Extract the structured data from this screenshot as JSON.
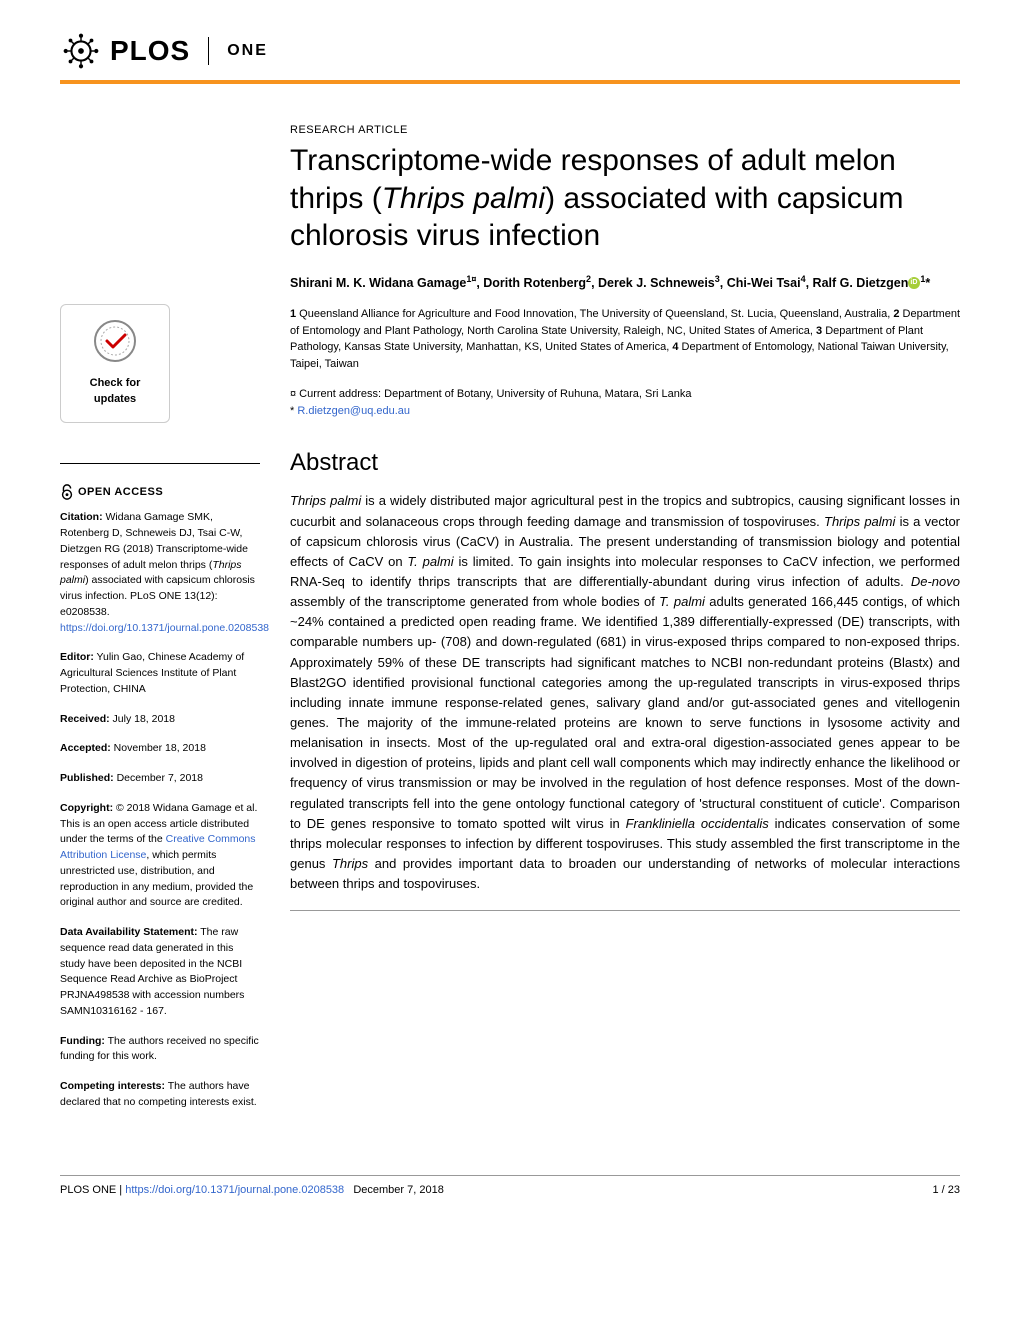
{
  "journal": {
    "logo_text": "PLOS",
    "section": "ONE"
  },
  "colors": {
    "accent_bar": "#f7931e",
    "link": "#3366cc",
    "orcid": "#a6ce39",
    "text": "#000000",
    "hr": "#999999"
  },
  "article": {
    "type": "RESEARCH ARTICLE",
    "title_html": "Transcriptome-wide responses of adult melon thrips (<em>Thrips palmi</em>) associated with capsicum chlorosis virus infection",
    "authors_html": "Shirani M. K. Widana Gamage<sup>1¤</sup>, Dorith Rotenberg<sup>2</sup>, Derek J. Schneweis<sup>3</sup>, Chi-Wei Tsai<sup>4</sup>, Ralf G. Dietzgen<span class='orcid-icon' data-name='orcid-icon' data-interactable='false'></span><sup>1</sup>*",
    "affiliations_html": "<strong>1</strong> Queensland Alliance for Agriculture and Food Innovation, The University of Queensland, St. Lucia, Queensland, Australia, <strong>2</strong> Department of Entomology and Plant Pathology, North Carolina State University, Raleigh, NC, United States of America, <strong>3</strong> Department of Plant Pathology, Kansas State University, Manhattan, KS, United States of America, <strong>4</strong> Department of Entomology, National Taiwan University, Taipei, Taiwan",
    "current_address": "¤ Current address: Department of Botany, University of Ruhuna, Matara, Sri Lanka",
    "corresponding_prefix": "* ",
    "corresponding_email": "R.dietzgen@uq.edu.au"
  },
  "abstract": {
    "heading": "Abstract",
    "body_html": "<em>Thrips palmi</em> is a widely distributed major agricultural pest in the tropics and subtropics, causing significant losses in cucurbit and solanaceous crops through feeding damage and transmission of tospoviruses. <em>Thrips palmi</em> is a vector of capsicum chlorosis virus (CaCV) in Australia. The present understanding of transmission biology and potential effects of CaCV on <em>T. palmi</em> is limited. To gain insights into molecular responses to CaCV infection, we performed RNA-Seq to identify thrips transcripts that are differentially-abundant during virus infection of adults. <em>De-novo</em> assembly of the transcriptome generated from whole bodies of <em>T. palmi</em> adults generated 166,445 contigs, of which ~24% contained a predicted open reading frame. We identified 1,389 differentially-expressed (DE) transcripts, with comparable numbers up- (708) and down-regulated (681) in virus-exposed thrips compared to non-exposed thrips. Approximately 59% of these DE transcripts had significant matches to NCBI non-redundant proteins (Blastx) and Blast2GO identified provisional functional categories among the up-regulated transcripts in virus-exposed thrips including innate immune response-related genes, salivary gland and/or gut-associated genes and vitellogenin genes. The majority of the immune-related proteins are known to serve functions in lysosome activity and melanisation in insects. Most of the up-regulated oral and extra-oral digestion-associated genes appear to be involved in digestion of proteins, lipids and plant cell wall components which may indirectly enhance the likelihood or frequency of virus transmission or may be involved in the regulation of host defence responses. Most of the down-regulated transcripts fell into the gene ontology functional category of 'structural constituent of cuticle'. Comparison to DE genes responsive to tomato spotted wilt virus in <em>Frankliniella occidentalis</em> indicates conservation of some thrips molecular responses to infection by different tospoviruses. This study assembled the first transcriptome in the genus <em>Thrips</em> and provides important data to broaden our understanding of networks of molecular interactions between thrips and tospoviruses."
  },
  "sidebar": {
    "check_updates_line1": "Check for",
    "check_updates_line2": "updates",
    "open_access": "OPEN ACCESS",
    "citation_label": "Citation:",
    "citation_text": " Widana Gamage SMK, Rotenberg D, Schneweis DJ, Tsai C-W, Dietzgen RG (2018) Transcriptome-wide responses of adult melon thrips (<em>Thrips palmi</em>) associated with capsicum chlorosis virus infection. PLoS ONE 13(12): e0208538. ",
    "citation_link": "https://doi.org/10.1371/journal.pone.0208538",
    "editor_label": "Editor:",
    "editor_text": " Yulin Gao, Chinese Academy of Agricultural Sciences Institute of Plant Protection, CHINA",
    "received_label": "Received:",
    "received_text": " July 18, 2018",
    "accepted_label": "Accepted:",
    "accepted_text": " November 18, 2018",
    "published_label": "Published:",
    "published_text": " December 7, 2018",
    "copyright_label": "Copyright:",
    "copyright_text_pre": " © 2018 Widana Gamage et al. This is an open access article distributed under the terms of the ",
    "copyright_link": "Creative Commons Attribution License",
    "copyright_text_post": ", which permits unrestricted use, distribution, and reproduction in any medium, provided the original author and source are credited.",
    "data_label": "Data Availability Statement:",
    "data_text": " The raw sequence read data generated in this study have been deposited in the NCBI Sequence Read Archive as BioProject PRJNA498538 with accession numbers SAMN10316162 - 167.",
    "funding_label": "Funding:",
    "funding_text": " The authors received no specific funding for this work.",
    "competing_label": "Competing interests:",
    "competing_text": " The authors have declared that no competing interests exist."
  },
  "footer": {
    "journal": "PLOS ONE | ",
    "doi": "https://doi.org/10.1371/journal.pone.0208538",
    "date": "December 7, 2018",
    "page": "1 / 23"
  }
}
